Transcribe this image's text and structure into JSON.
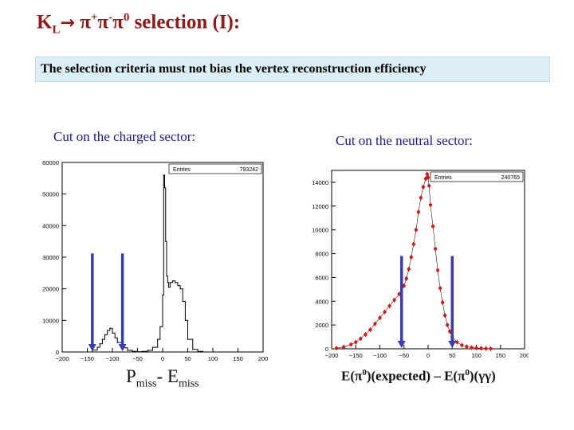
{
  "slide": {
    "title_main": "K",
    "title_sub": "L",
    "title_arrow": "→",
    "title_pions": "π",
    "title_plus": "+",
    "title_pi2": "π",
    "title_minus": "-",
    "title_pi3": "π",
    "title_zero": "0",
    "title_rest": " selection (I):",
    "banner": "The selection criteria must not bias the vertex reconstruction efficiency",
    "left_heading": "Cut on the charged sector:",
    "right_heading": "Cut on the neutral sector:",
    "left_xlabel_p": "P",
    "left_xlabel_p_sub": "miss",
    "left_xlabel_dash": "- E",
    "left_xlabel_e_sub": "miss",
    "right_xlabel_a": "E(π",
    "right_xlabel_a_sup": "0",
    "right_xlabel_b": ")(expected) – E(π",
    "right_xlabel_b_sup": "0",
    "right_xlabel_c": ")(γγ)"
  },
  "colors": {
    "title": "#8b1a1a",
    "subheading": "#1a1a8a",
    "banner_bg": "#dceef6",
    "cut_arrow": "#3b3bb0",
    "marker": "#dd1111"
  },
  "chart_data": [
    {
      "type": "line",
      "stats_label": "Entries",
      "stats_value": "793242",
      "xlim": [
        -200,
        200
      ],
      "ylim": [
        0,
        60000
      ],
      "x_ticks": [
        "-200",
        "-150",
        "-100",
        "-50",
        "0",
        "50",
        "100",
        "150",
        "200"
      ],
      "y_ticks": [
        "0",
        "10000",
        "20000",
        "30000",
        "40000",
        "50000",
        "60000"
      ],
      "x": [
        -160,
        -150,
        -140,
        -130,
        -125,
        -120,
        -115,
        -110,
        -105,
        -100,
        -95,
        -90,
        -80,
        -70,
        -60,
        -50,
        -40,
        -30,
        -20,
        -10,
        -5,
        0,
        2,
        4,
        6,
        8,
        10,
        12,
        15,
        20,
        25,
        30,
        35,
        40,
        45,
        50,
        60,
        70,
        80,
        90,
        100,
        110
      ],
      "values": [
        0,
        0,
        600,
        1500,
        2600,
        4000,
        5500,
        6800,
        7500,
        6000,
        4500,
        3000,
        1300,
        500,
        200,
        100,
        200,
        500,
        1500,
        4000,
        8000,
        18000,
        56000,
        52000,
        35000,
        24000,
        22000,
        20500,
        22000,
        22500,
        22000,
        21000,
        20000,
        16000,
        10000,
        4000,
        800,
        200,
        0,
        0,
        0,
        0
      ],
      "cuts": [
        -140,
        -80
      ]
    },
    {
      "type": "scatter",
      "stats_label": "Entries",
      "stats_value": "240765",
      "xlim": [
        -200,
        200
      ],
      "ylim": [
        0,
        15000
      ],
      "x_ticks": [
        "-200",
        "-150",
        "-100",
        "-50",
        "0",
        "50",
        "100",
        "150",
        "200"
      ],
      "y_ticks": [
        "0",
        "2000",
        "4000",
        "6000",
        "8000",
        "10000",
        "12000",
        "14000"
      ],
      "x": [
        -190,
        -175,
        -160,
        -150,
        -140,
        -130,
        -120,
        -110,
        -100,
        -90,
        -80,
        -70,
        -60,
        -50,
        -45,
        -40,
        -35,
        -30,
        -25,
        -20,
        -15,
        -10,
        -5,
        -2,
        0,
        2,
        5,
        10,
        15,
        20,
        25,
        30,
        35,
        40,
        45,
        50,
        60,
        70,
        80,
        90,
        100,
        110,
        120,
        130
      ],
      "values": [
        50,
        150,
        350,
        550,
        850,
        1200,
        1600,
        2100,
        2600,
        3100,
        3600,
        4100,
        4600,
        5300,
        5900,
        6700,
        7700,
        8800,
        10000,
        11500,
        12700,
        13600,
        14300,
        14700,
        14400,
        13700,
        12100,
        10300,
        8400,
        6600,
        5100,
        3900,
        2800,
        2000,
        1450,
        1000,
        550,
        300,
        180,
        100,
        60,
        40,
        20,
        10
      ],
      "cuts": [
        -55,
        50
      ]
    }
  ]
}
